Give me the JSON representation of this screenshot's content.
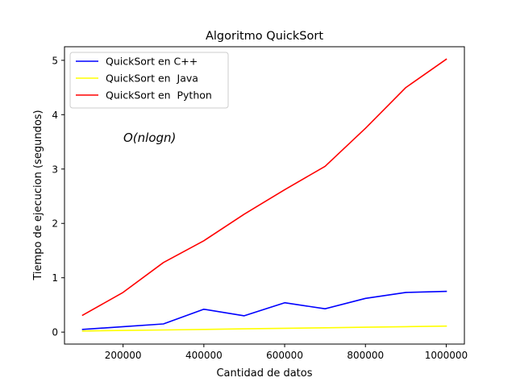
{
  "chart_data": {
    "type": "line",
    "title": "Algoritmo QuickSort",
    "xlabel": "Cantidad de datos",
    "ylabel": "Tiempo de ejecucion (segundos)",
    "annotation": "O(nlogn)",
    "xlim": [
      55000,
      1045000
    ],
    "ylim": [
      -0.22,
      5.25
    ],
    "xticks": [
      200000,
      400000,
      600000,
      800000,
      1000000
    ],
    "xtick_labels": [
      "200000",
      "400000",
      "600000",
      "800000",
      "1000000"
    ],
    "yticks": [
      0,
      1,
      2,
      3,
      4,
      5
    ],
    "ytick_labels": [
      "0",
      "1",
      "2",
      "3",
      "4",
      "5"
    ],
    "grid": false,
    "legend_position": "top-left",
    "x": [
      100000,
      200000,
      300000,
      400000,
      500000,
      600000,
      700000,
      800000,
      900000,
      1000000
    ],
    "series": [
      {
        "name": "QuickSort en C++",
        "color": "#0000ff",
        "values": [
          0.05,
          0.1,
          0.15,
          0.42,
          0.3,
          0.54,
          0.43,
          0.62,
          0.73,
          0.75
        ]
      },
      {
        "name": "QuickSort en  Java",
        "color": "#ffff00",
        "values": [
          0.02,
          0.03,
          0.04,
          0.05,
          0.06,
          0.07,
          0.08,
          0.09,
          0.1,
          0.11
        ]
      },
      {
        "name": "QuickSort en  Python",
        "color": "#ff0000",
        "values": [
          0.31,
          0.73,
          1.28,
          1.68,
          2.17,
          2.62,
          3.05,
          3.75,
          4.5,
          5.02
        ]
      }
    ]
  }
}
